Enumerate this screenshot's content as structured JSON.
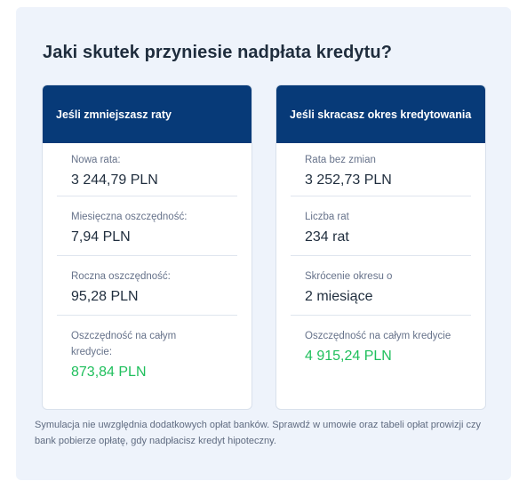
{
  "title": "Jaki skutek przyniesie nadpłata kredytu?",
  "left_card": {
    "header": "Jeśli zmniejszasz raty",
    "rows": [
      {
        "label": "Nowa rata:",
        "value": "3 244,79 PLN"
      },
      {
        "label": "Miesięczna oszczędność:",
        "value": "7,94 PLN"
      },
      {
        "label": "Roczna oszczędność:",
        "value": "95,28 PLN"
      },
      {
        "label": "Oszczędność na całym kredycie:",
        "value": "873,84 PLN"
      }
    ]
  },
  "right_card": {
    "header": "Jeśli skracasz okres kredytowania",
    "rows": [
      {
        "label": "Rata bez zmian",
        "value": "3 252,73 PLN"
      },
      {
        "label": "Liczba rat",
        "value": "234 rat"
      },
      {
        "label": "Skrócenie okresu o",
        "value": "2 miesiące"
      },
      {
        "label": "Oszczędność na całym kredycie",
        "value": "4 915,24 PLN"
      }
    ]
  },
  "note": "Symulacja nie uwzględnia dodatkowych opłat banków. Sprawdź w umowie oraz tabeli opłat prowizji czy bank pobierze opłatę, gdy nadpłacisz kredyt hipoteczny.",
  "colors": {
    "header_bg": "#073a78",
    "panel_bg": "#eef3fb",
    "savings_green": "#1fbf5c"
  }
}
